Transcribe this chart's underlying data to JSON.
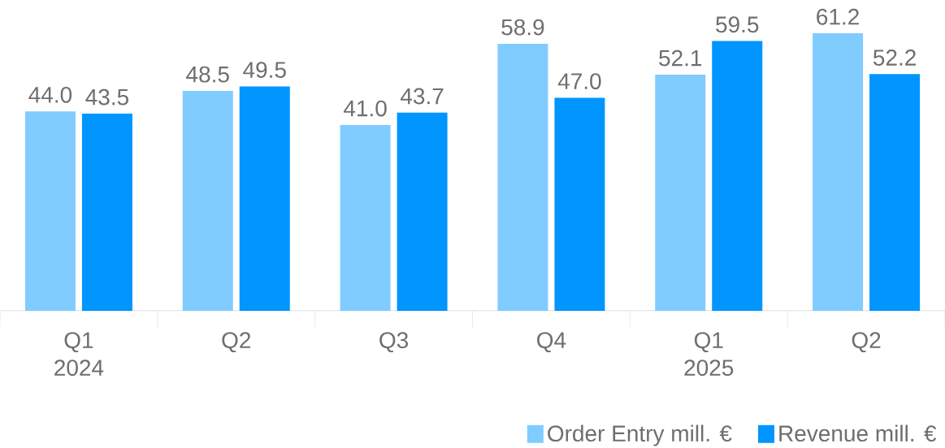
{
  "chart_data": {
    "type": "bar",
    "categories": [
      "Q1 2024",
      "Q2",
      "Q3",
      "Q4",
      "Q1 2025",
      "Q2"
    ],
    "series": [
      {
        "name": "Order Entry mill. €",
        "color": "#80ccff",
        "values": [
          44.0,
          48.5,
          41.0,
          58.9,
          52.1,
          61.2
        ],
        "value_labels": [
          "44.0",
          "48.5",
          "41.0",
          "58.9",
          "52.1",
          "61.2"
        ]
      },
      {
        "name": "Revenue mill. €",
        "color": "#0095ff",
        "values": [
          43.5,
          49.5,
          43.7,
          47.0,
          59.5,
          52.2
        ],
        "value_labels": [
          "43.5",
          "49.5",
          "43.7",
          "47.0",
          "59.5",
          "52.2"
        ]
      }
    ],
    "legend": "bottom right",
    "grid": false
  }
}
